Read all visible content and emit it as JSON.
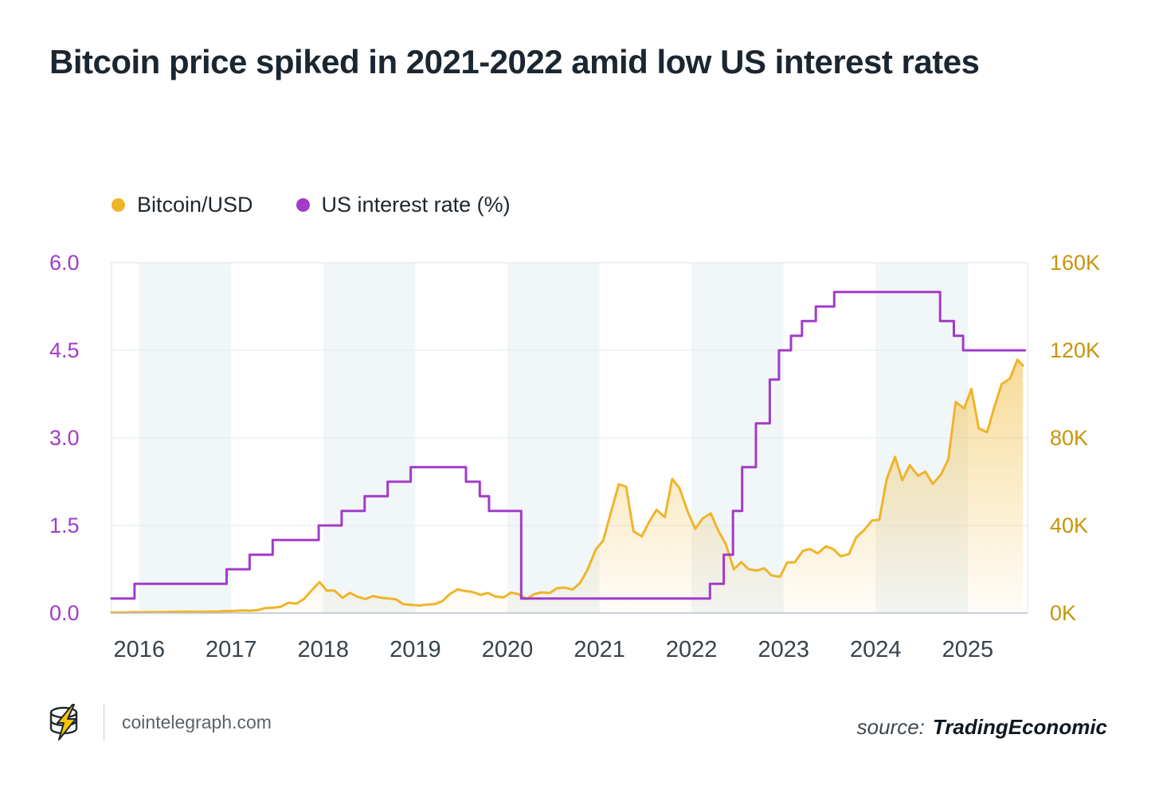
{
  "title": "Bitcoin price spiked in 2021-2022 amid low US interest rates",
  "legend": [
    {
      "label": "Bitcoin/USD",
      "color": "#F0B429"
    },
    {
      "label": "US interest rate (%)",
      "color": "#A23BC8"
    }
  ],
  "footer": {
    "site": "cointelegraph.com",
    "source_label": "source:",
    "source_name": "TradingEconomic"
  },
  "chart_data": {
    "type": "line",
    "title": "Bitcoin price spiked in 2021-2022 amid low US interest rates",
    "x_domain": [
      2015.7,
      2025.65
    ],
    "x_ticks": [
      "2016",
      "2017",
      "2018",
      "2019",
      "2020",
      "2021",
      "2022",
      "2023",
      "2024",
      "2025"
    ],
    "x_tick_values": [
      2016,
      2017,
      2018,
      2019,
      2020,
      2021,
      2022,
      2023,
      2024,
      2025
    ],
    "grid": true,
    "legend_position": "top-left",
    "left_axis": {
      "name": "US interest rate (%)",
      "range": [
        0,
        6
      ],
      "ticks": [
        "0.0",
        "1.5",
        "3.0",
        "4.5",
        "6.0"
      ],
      "tick_values": [
        0,
        1.5,
        3,
        4.5,
        6
      ],
      "color": "#A23BC8"
    },
    "right_axis": {
      "name": "Bitcoin/USD (thousand USD)",
      "range": [
        0,
        160
      ],
      "ticks": [
        "0K",
        "40K",
        "80K",
        "120K",
        "160K"
      ],
      "tick_values": [
        0,
        40,
        80,
        120,
        160
      ],
      "color": "#C8940A"
    },
    "year_bands": [
      [
        2016,
        2017
      ],
      [
        2018,
        2019
      ],
      [
        2020,
        2021
      ],
      [
        2022,
        2023
      ],
      [
        2024,
        2025
      ]
    ],
    "style": {
      "band_color": "#f1f6f8",
      "grid_color": "#e4e9ee",
      "border_color": "#dbe2e8",
      "axis_line_color": "#b9c1c8",
      "x_label_color": "#39434b"
    },
    "series": [
      {
        "name": "Bitcoin/USD",
        "axis": "right",
        "units": "thousand USD",
        "color": "#F0B429",
        "area": true,
        "points": [
          [
            2015.7,
            0.24
          ],
          [
            2015.79,
            0.24
          ],
          [
            2015.87,
            0.33
          ],
          [
            2015.96,
            0.43
          ],
          [
            2016.04,
            0.37
          ],
          [
            2016.12,
            0.44
          ],
          [
            2016.21,
            0.42
          ],
          [
            2016.29,
            0.45
          ],
          [
            2016.37,
            0.53
          ],
          [
            2016.46,
            0.67
          ],
          [
            2016.54,
            0.62
          ],
          [
            2016.62,
            0.57
          ],
          [
            2016.71,
            0.61
          ],
          [
            2016.79,
            0.7
          ],
          [
            2016.87,
            0.74
          ],
          [
            2016.96,
            0.96
          ],
          [
            2017.04,
            0.97
          ],
          [
            2017.12,
            1.18
          ],
          [
            2017.21,
            1.08
          ],
          [
            2017.29,
            1.35
          ],
          [
            2017.37,
            2.29
          ],
          [
            2017.46,
            2.48
          ],
          [
            2017.54,
            2.87
          ],
          [
            2017.62,
            4.7
          ],
          [
            2017.71,
            4.34
          ],
          [
            2017.79,
            6.45
          ],
          [
            2017.87,
            10.2
          ],
          [
            2017.96,
            14.16
          ],
          [
            2018.04,
            10.22
          ],
          [
            2018.12,
            10.33
          ],
          [
            2018.21,
            6.93
          ],
          [
            2018.29,
            9.24
          ],
          [
            2018.37,
            7.49
          ],
          [
            2018.46,
            6.4
          ],
          [
            2018.54,
            7.78
          ],
          [
            2018.62,
            7.04
          ],
          [
            2018.71,
            6.63
          ],
          [
            2018.79,
            6.3
          ],
          [
            2018.87,
            4.02
          ],
          [
            2018.96,
            3.74
          ],
          [
            2019.04,
            3.44
          ],
          [
            2019.12,
            3.85
          ],
          [
            2019.21,
            4.1
          ],
          [
            2019.29,
            5.32
          ],
          [
            2019.37,
            8.56
          ],
          [
            2019.46,
            10.82
          ],
          [
            2019.54,
            10.08
          ],
          [
            2019.62,
            9.63
          ],
          [
            2019.71,
            8.29
          ],
          [
            2019.79,
            9.2
          ],
          [
            2019.87,
            7.57
          ],
          [
            2019.96,
            7.19
          ],
          [
            2020.04,
            9.35
          ],
          [
            2020.12,
            8.6
          ],
          [
            2020.21,
            6.44
          ],
          [
            2020.29,
            8.62
          ],
          [
            2020.37,
            9.46
          ],
          [
            2020.46,
            9.14
          ],
          [
            2020.54,
            11.35
          ],
          [
            2020.62,
            11.65
          ],
          [
            2020.71,
            10.78
          ],
          [
            2020.79,
            13.8
          ],
          [
            2020.87,
            19.7
          ],
          [
            2020.96,
            28.99
          ],
          [
            2021.04,
            33.11
          ],
          [
            2021.12,
            45.24
          ],
          [
            2021.21,
            58.8
          ],
          [
            2021.29,
            57.75
          ],
          [
            2021.37,
            37.33
          ],
          [
            2021.46,
            35.04
          ],
          [
            2021.54,
            41.63
          ],
          [
            2021.62,
            47.17
          ],
          [
            2021.71,
            43.79
          ],
          [
            2021.79,
            61.32
          ],
          [
            2021.87,
            57.01
          ],
          [
            2021.96,
            46.22
          ],
          [
            2022.04,
            38.48
          ],
          [
            2022.12,
            43.19
          ],
          [
            2022.21,
            45.54
          ],
          [
            2022.29,
            37.64
          ],
          [
            2022.37,
            31.79
          ],
          [
            2022.46,
            19.98
          ],
          [
            2022.54,
            23.3
          ],
          [
            2022.62,
            20.05
          ],
          [
            2022.71,
            19.43
          ],
          [
            2022.79,
            20.49
          ],
          [
            2022.87,
            17.17
          ],
          [
            2022.96,
            16.55
          ],
          [
            2023.04,
            23.13
          ],
          [
            2023.12,
            23.14
          ],
          [
            2023.21,
            28.48
          ],
          [
            2023.29,
            29.23
          ],
          [
            2023.37,
            27.22
          ],
          [
            2023.46,
            30.48
          ],
          [
            2023.54,
            29.23
          ],
          [
            2023.62,
            25.93
          ],
          [
            2023.71,
            26.97
          ],
          [
            2023.79,
            34.67
          ],
          [
            2023.87,
            37.72
          ],
          [
            2023.96,
            42.27
          ],
          [
            2024.04,
            42.58
          ],
          [
            2024.12,
            61.2
          ],
          [
            2024.21,
            71.33
          ],
          [
            2024.29,
            60.64
          ],
          [
            2024.37,
            67.53
          ],
          [
            2024.46,
            62.68
          ],
          [
            2024.54,
            64.62
          ],
          [
            2024.62,
            58.97
          ],
          [
            2024.71,
            63.33
          ],
          [
            2024.79,
            70.22
          ],
          [
            2024.87,
            96.45
          ],
          [
            2024.96,
            93.43
          ],
          [
            2025.04,
            102.41
          ],
          [
            2025.12,
            84.35
          ],
          [
            2025.21,
            82.55
          ],
          [
            2025.29,
            94.21
          ],
          [
            2025.37,
            104.64
          ],
          [
            2025.46,
            107.13
          ],
          [
            2025.54,
            115.76
          ],
          [
            2025.6,
            113.0
          ]
        ]
      },
      {
        "name": "US interest rate (%)",
        "axis": "left",
        "units": "%",
        "color": "#A23BC8",
        "area": false,
        "points": [
          [
            2015.7,
            0.25
          ],
          [
            2015.95,
            0.25
          ],
          [
            2015.95,
            0.5
          ],
          [
            2016.95,
            0.5
          ],
          [
            2016.95,
            0.75
          ],
          [
            2017.2,
            0.75
          ],
          [
            2017.2,
            1.0
          ],
          [
            2017.45,
            1.0
          ],
          [
            2017.45,
            1.25
          ],
          [
            2017.95,
            1.25
          ],
          [
            2017.95,
            1.5
          ],
          [
            2018.2,
            1.5
          ],
          [
            2018.2,
            1.75
          ],
          [
            2018.45,
            1.75
          ],
          [
            2018.45,
            2.0
          ],
          [
            2018.7,
            2.0
          ],
          [
            2018.7,
            2.25
          ],
          [
            2018.95,
            2.25
          ],
          [
            2018.95,
            2.5
          ],
          [
            2019.55,
            2.5
          ],
          [
            2019.55,
            2.25
          ],
          [
            2019.7,
            2.25
          ],
          [
            2019.7,
            2.0
          ],
          [
            2019.8,
            2.0
          ],
          [
            2019.8,
            1.75
          ],
          [
            2020.15,
            1.75
          ],
          [
            2020.15,
            0.25
          ],
          [
            2022.2,
            0.25
          ],
          [
            2022.2,
            0.5
          ],
          [
            2022.35,
            0.5
          ],
          [
            2022.35,
            1.0
          ],
          [
            2022.45,
            1.0
          ],
          [
            2022.45,
            1.75
          ],
          [
            2022.55,
            1.75
          ],
          [
            2022.55,
            2.5
          ],
          [
            2022.7,
            2.5
          ],
          [
            2022.7,
            3.25
          ],
          [
            2022.85,
            3.25
          ],
          [
            2022.85,
            4.0
          ],
          [
            2022.95,
            4.0
          ],
          [
            2022.95,
            4.5
          ],
          [
            2023.08,
            4.5
          ],
          [
            2023.08,
            4.75
          ],
          [
            2023.2,
            4.75
          ],
          [
            2023.2,
            5.0
          ],
          [
            2023.35,
            5.0
          ],
          [
            2023.35,
            5.25
          ],
          [
            2023.55,
            5.25
          ],
          [
            2023.55,
            5.5
          ],
          [
            2024.7,
            5.5
          ],
          [
            2024.7,
            5.0
          ],
          [
            2024.85,
            5.0
          ],
          [
            2024.85,
            4.75
          ],
          [
            2024.95,
            4.75
          ],
          [
            2024.95,
            4.5
          ],
          [
            2025.62,
            4.5
          ]
        ]
      }
    ]
  }
}
